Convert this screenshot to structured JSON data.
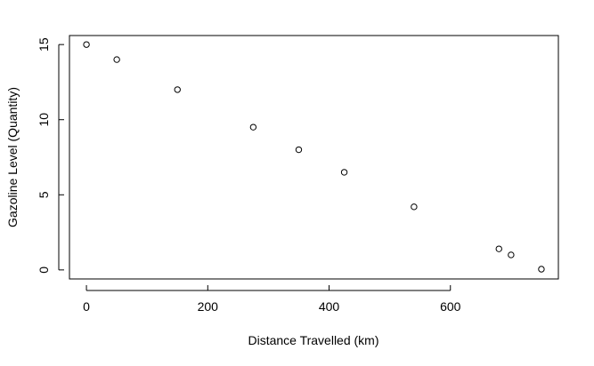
{
  "chart_data": {
    "type": "scatter",
    "title": "",
    "xlabel": "Distance Travelled (km)",
    "ylabel": "Gazoline Level (Quantity)",
    "xlim": [
      -28,
      778
    ],
    "ylim": [
      -0.6,
      15.6
    ],
    "x_ticks": [
      0,
      200,
      400,
      600
    ],
    "y_ticks": [
      0,
      5,
      10,
      15
    ],
    "grid": false,
    "legend": "none",
    "marker": "open-circle",
    "marker_color": "#000000",
    "points": [
      {
        "x": 0,
        "y": 15
      },
      {
        "x": 50,
        "y": 14
      },
      {
        "x": 150,
        "y": 12
      },
      {
        "x": 275,
        "y": 9.5
      },
      {
        "x": 350,
        "y": 8
      },
      {
        "x": 425,
        "y": 6.5
      },
      {
        "x": 540,
        "y": 4.2
      },
      {
        "x": 680,
        "y": 1.4
      },
      {
        "x": 700,
        "y": 1.0
      },
      {
        "x": 750,
        "y": 0.05
      }
    ]
  }
}
